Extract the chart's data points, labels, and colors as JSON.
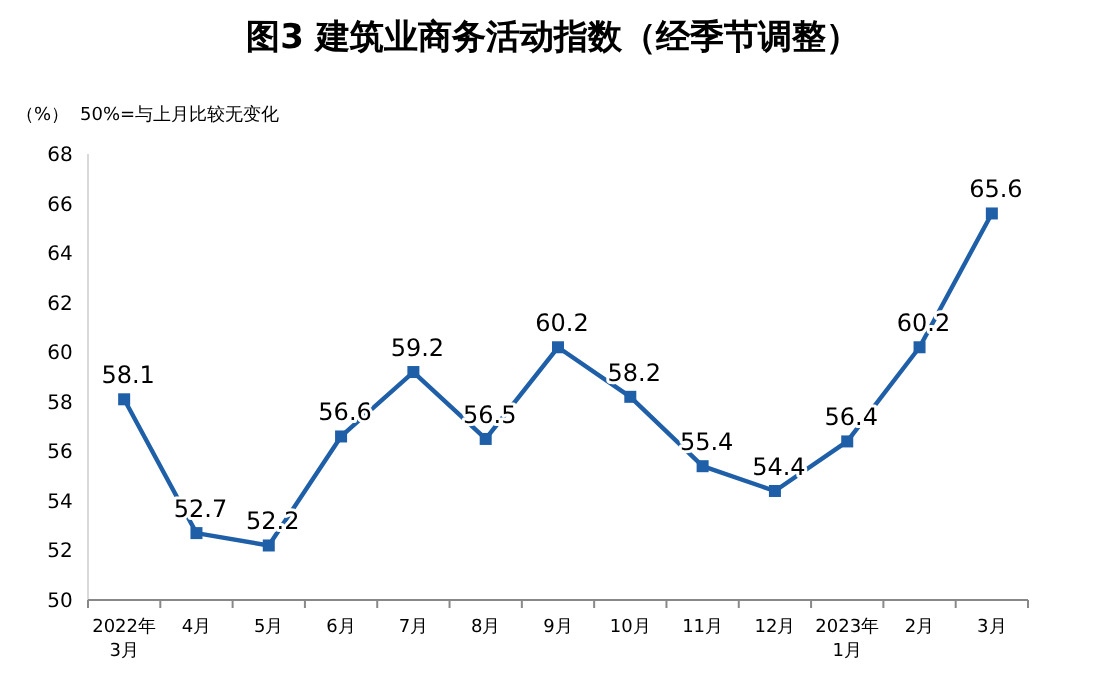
{
  "chart_data": {
    "type": "line",
    "title": "图3  建筑业商务活动指数（经季节调整）",
    "ylabel": "（%）",
    "annotations": [
      "50%=与上月比较无变化"
    ],
    "categories": [
      "2022年\n3月",
      "4月",
      "5月",
      "6月",
      "7月",
      "8月",
      "9月",
      "10月",
      "11月",
      "12月",
      "2023年\n1月",
      "2月",
      "3月"
    ],
    "series": [
      {
        "color": "#1f5fa8",
        "values": [
          58.1,
          52.7,
          52.2,
          56.6,
          59.2,
          56.5,
          60.2,
          58.2,
          55.4,
          54.4,
          56.4,
          60.2,
          65.6
        ]
      }
    ],
    "ylim": [
      50,
      68
    ],
    "yticks": [
      50,
      52,
      54,
      56,
      58,
      60,
      62,
      64,
      66,
      68
    ],
    "data_labels": true,
    "marker": "square",
    "grid": false
  }
}
